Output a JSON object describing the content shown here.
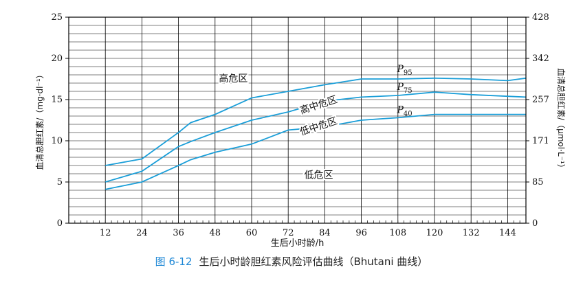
{
  "caption": {
    "figure_number": "图 6-12",
    "text": "生后小时龄胆红素风险评估曲线（Bhutani 曲线）"
  },
  "colors": {
    "series": "#1a9ed8",
    "grid": "#000000",
    "caption_number": "#1e88d6"
  },
  "chart_data": {
    "type": "line",
    "title": "",
    "xlabel": "生后小时龄/h",
    "ylabel": "血清总胆红素/（mg·dl⁻¹）",
    "y2label": "血清总胆红素/（μmol·L⁻¹）",
    "xlim": [
      0,
      150
    ],
    "ylim": [
      0,
      25
    ],
    "x_ticks": [
      12,
      24,
      36,
      48,
      60,
      72,
      84,
      96,
      108,
      120,
      132,
      144
    ],
    "y_ticks": [
      0,
      5,
      10,
      15,
      20,
      25
    ],
    "y2_ticks": [
      "0",
      "85",
      "171",
      "257",
      "342",
      "428"
    ],
    "grid": true,
    "series": [
      {
        "name": "P95",
        "label_main": "P",
        "label_sub": "95",
        "points": [
          [
            12,
            7.0
          ],
          [
            24,
            7.8
          ],
          [
            36,
            11.0
          ],
          [
            40,
            12.2
          ],
          [
            48,
            13.2
          ],
          [
            60,
            15.2
          ],
          [
            72,
            16.0
          ],
          [
            84,
            16.8
          ],
          [
            96,
            17.5
          ],
          [
            108,
            17.5
          ],
          [
            120,
            17.6
          ],
          [
            132,
            17.5
          ],
          [
            144,
            17.3
          ],
          [
            150,
            17.6
          ]
        ]
      },
      {
        "name": "P75",
        "label_main": "P",
        "label_sub": "75",
        "points": [
          [
            12,
            5.0
          ],
          [
            24,
            6.3
          ],
          [
            36,
            9.3
          ],
          [
            40,
            9.9
          ],
          [
            48,
            11.0
          ],
          [
            60,
            12.5
          ],
          [
            72,
            13.5
          ],
          [
            84,
            14.8
          ],
          [
            96,
            15.3
          ],
          [
            108,
            15.5
          ],
          [
            120,
            15.9
          ],
          [
            132,
            15.6
          ],
          [
            144,
            15.4
          ],
          [
            150,
            15.3
          ]
        ]
      },
      {
        "name": "P40",
        "label_main": "P",
        "label_sub": "40",
        "points": [
          [
            12,
            4.1
          ],
          [
            24,
            5.0
          ],
          [
            36,
            7.0
          ],
          [
            40,
            7.7
          ],
          [
            48,
            8.6
          ],
          [
            60,
            9.6
          ],
          [
            72,
            11.3
          ],
          [
            84,
            11.7
          ],
          [
            96,
            12.5
          ],
          [
            108,
            12.8
          ],
          [
            120,
            13.2
          ],
          [
            132,
            13.2
          ],
          [
            144,
            13.2
          ],
          [
            150,
            13.2
          ]
        ]
      }
    ],
    "zones": [
      {
        "label": "高危区",
        "x": 54,
        "y": 17.5,
        "rotate": 0
      },
      {
        "label": "高中危区",
        "x": 82,
        "y": 14.3,
        "rotate": -18
      },
      {
        "label": "低中危区",
        "x": 82,
        "y": 11.7,
        "rotate": -18
      },
      {
        "label": "低危区",
        "x": 82,
        "y": 5.8,
        "rotate": 0
      }
    ]
  }
}
